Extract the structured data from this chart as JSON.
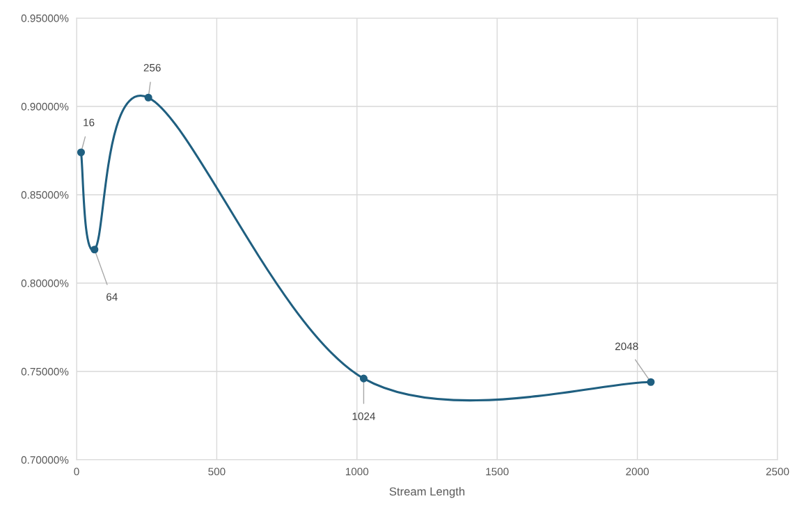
{
  "chart_data": {
    "type": "line",
    "xlabel": "Stream Length",
    "x": [
      16,
      64,
      256,
      1024,
      2048
    ],
    "series": [
      {
        "color": "#1f5f80",
        "values": [
          0.874,
          0.819,
          0.905,
          0.746,
          0.744
        ]
      }
    ],
    "xlim": [
      0,
      2500
    ],
    "xticks": [
      0,
      500,
      1000,
      1500,
      2000,
      2500
    ],
    "ylim": [
      0.7,
      0.95
    ],
    "yticks": [
      {
        "value": 0.7,
        "label": "0.70000%"
      },
      {
        "value": 0.75,
        "label": "0.75000%"
      },
      {
        "value": 0.8,
        "label": "0.80000%"
      },
      {
        "value": 0.85,
        "label": "0.85000%"
      },
      {
        "value": 0.9,
        "label": "0.90000%"
      },
      {
        "value": 0.95,
        "label": "0.95000%"
      }
    ],
    "grid": true,
    "marker": "circle",
    "line_style": "solid",
    "annotations": [
      {
        "text": "16",
        "x": 16,
        "y": 0.874
      },
      {
        "text": "64",
        "x": 64,
        "y": 0.819
      },
      {
        "text": "256",
        "x": 256,
        "y": 0.905
      },
      {
        "text": "1024",
        "x": 1024,
        "y": 0.746
      },
      {
        "text": "2048",
        "x": 2048,
        "y": 0.744
      }
    ]
  }
}
